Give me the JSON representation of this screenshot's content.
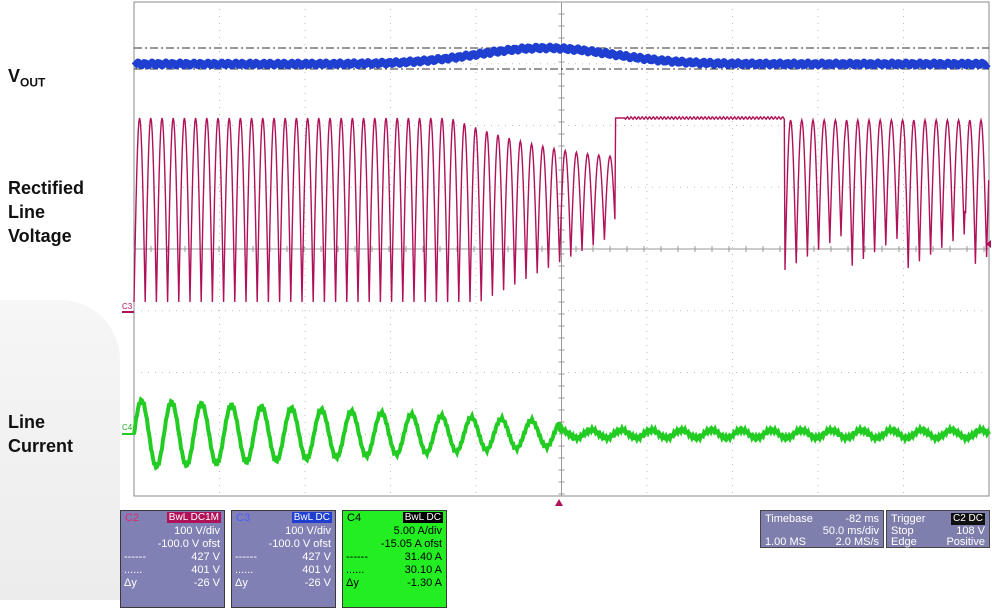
{
  "labels": {
    "vout_main": "V",
    "vout_sub": "OUT",
    "rectified_line1": "Rectified",
    "rectified_line2": "Line",
    "rectified_line3": "Voltage",
    "current_line1": "Line",
    "current_line2": "Current"
  },
  "markers": {
    "c3": "C3",
    "c4": "C4"
  },
  "colors": {
    "vout": "#1f3fd0",
    "rectified": "#b0125a",
    "current": "#22cc22",
    "grid": "#bdbdbd",
    "panel_bg": "#8080b4",
    "c4_bg": "#22ee22"
  },
  "channels": [
    {
      "name": "C2",
      "badge": "BwL DC1M",
      "vdiv": "100 V/div",
      "ofst": "-100.0 V ofst",
      "m1": "427 V",
      "m2": "401 V",
      "dy_label": "Δy",
      "dy": "-26 V"
    },
    {
      "name": "C3",
      "badge": "BwL DC",
      "vdiv": "100 V/div",
      "ofst": "-100.0 V ofst",
      "m1": "427 V",
      "m2": "401 V",
      "dy_label": "Δy",
      "dy": "-26 V"
    },
    {
      "name": "C4",
      "badge": "BwL DC",
      "vdiv": "5.00 A/div",
      "ofst": "-15.05 A ofst",
      "m1": "31.40 A",
      "m2": "30.10 A",
      "dy_label": "Δy",
      "dy": "-1.30 A"
    }
  ],
  "timebase": {
    "label": "Timebase",
    "delay": "-82 ms",
    "div": "50.0 ms/div",
    "samples": "1.00 MS",
    "rate": "2.0 MS/s"
  },
  "trigger": {
    "label": "Trigger",
    "badge": "C2 DC",
    "mode": "Stop",
    "level": "108 V",
    "type": "Edge",
    "slope": "Positive"
  }
}
